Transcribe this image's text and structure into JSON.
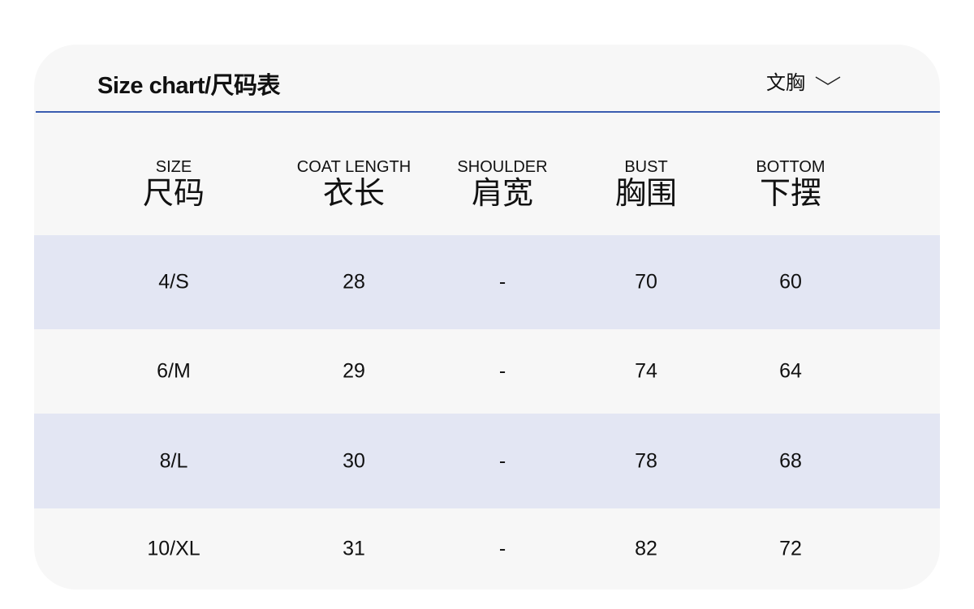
{
  "header": {
    "title": "Size chart/尺码表",
    "dropdown_label": "文胸",
    "dropdown_icon": "chevron-down-icon",
    "divider_color": "#3a5cb0"
  },
  "colors": {
    "card_bg": "#f7f7f7",
    "stripe_bg": "#e3e6f3"
  },
  "table": {
    "columns": [
      {
        "en": "SIZE",
        "cn": "尺码"
      },
      {
        "en": "COAT LENGTH",
        "cn": "衣长"
      },
      {
        "en": "SHOULDER",
        "cn": "肩宽"
      },
      {
        "en": "BUST",
        "cn": "胸围"
      },
      {
        "en": "BOTTOM",
        "cn": "下摆"
      }
    ],
    "rows": [
      [
        "4/S",
        "28",
        "-",
        "70",
        "60"
      ],
      [
        "6/M",
        "29",
        "-",
        "74",
        "64"
      ],
      [
        "8/L",
        "30",
        "-",
        "78",
        "68"
      ],
      [
        "10/XL",
        "31",
        "-",
        "82",
        "72"
      ]
    ]
  }
}
